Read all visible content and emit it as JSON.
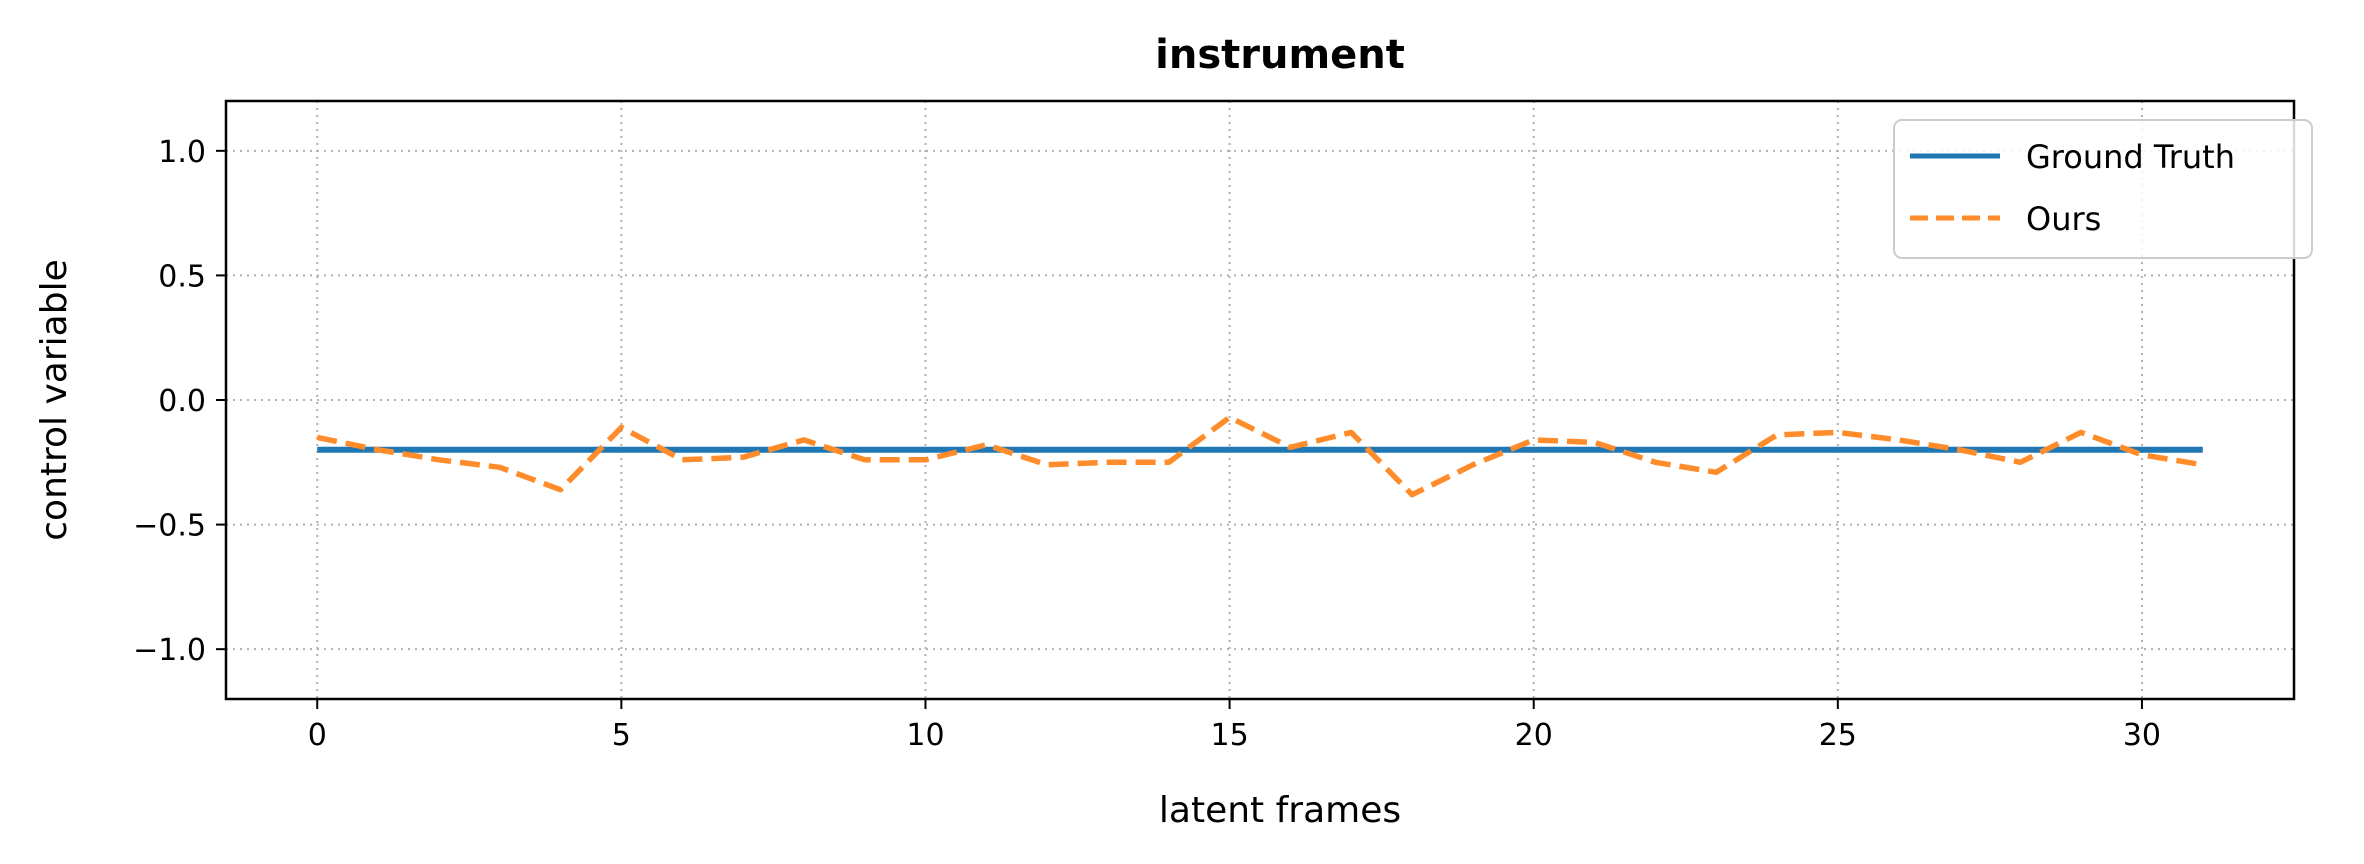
{
  "chart_data": {
    "type": "line",
    "title": "instrument",
    "xlabel": "latent frames",
    "ylabel": "control variable",
    "xlim": [
      -1.5,
      32.5
    ],
    "ylim": [
      -1.2,
      1.2
    ],
    "xticks": [
      0,
      5,
      10,
      15,
      20,
      25,
      30
    ],
    "yticks": [
      1.0,
      0.5,
      0.0,
      -0.5,
      -1.0
    ],
    "xtick_labels": [
      "0",
      "5",
      "10",
      "15",
      "20",
      "25",
      "30"
    ],
    "ytick_labels": [
      "1.0",
      "0.5",
      "0.0",
      "−0.5",
      "−1.0"
    ],
    "grid": true,
    "legend_position": "top-right",
    "x": [
      0,
      1,
      2,
      3,
      4,
      5,
      6,
      7,
      8,
      9,
      10,
      11,
      12,
      13,
      14,
      15,
      16,
      17,
      18,
      19,
      20,
      21,
      22,
      23,
      24,
      25,
      26,
      27,
      28,
      29,
      30,
      31
    ],
    "series": [
      {
        "name": "Ground Truth",
        "style": "solid",
        "color": "#1f77b4",
        "values": [
          -0.2,
          -0.2,
          -0.2,
          -0.2,
          -0.2,
          -0.2,
          -0.2,
          -0.2,
          -0.2,
          -0.2,
          -0.2,
          -0.2,
          -0.2,
          -0.2,
          -0.2,
          -0.2,
          -0.2,
          -0.2,
          -0.2,
          -0.2,
          -0.2,
          -0.2,
          -0.2,
          -0.2,
          -0.2,
          -0.2,
          -0.2,
          -0.2,
          -0.2,
          -0.2,
          -0.2,
          -0.2
        ]
      },
      {
        "name": "Ours",
        "style": "dashed",
        "color": "#ff8c2a",
        "values": [
          -0.15,
          -0.2,
          -0.24,
          -0.27,
          -0.36,
          -0.11,
          -0.24,
          -0.23,
          -0.16,
          -0.24,
          -0.24,
          -0.18,
          -0.26,
          -0.25,
          -0.25,
          -0.07,
          -0.19,
          -0.13,
          -0.38,
          -0.26,
          -0.16,
          -0.17,
          -0.25,
          -0.29,
          -0.14,
          -0.13,
          -0.16,
          -0.2,
          -0.25,
          -0.13,
          -0.22,
          -0.26
        ]
      }
    ]
  }
}
